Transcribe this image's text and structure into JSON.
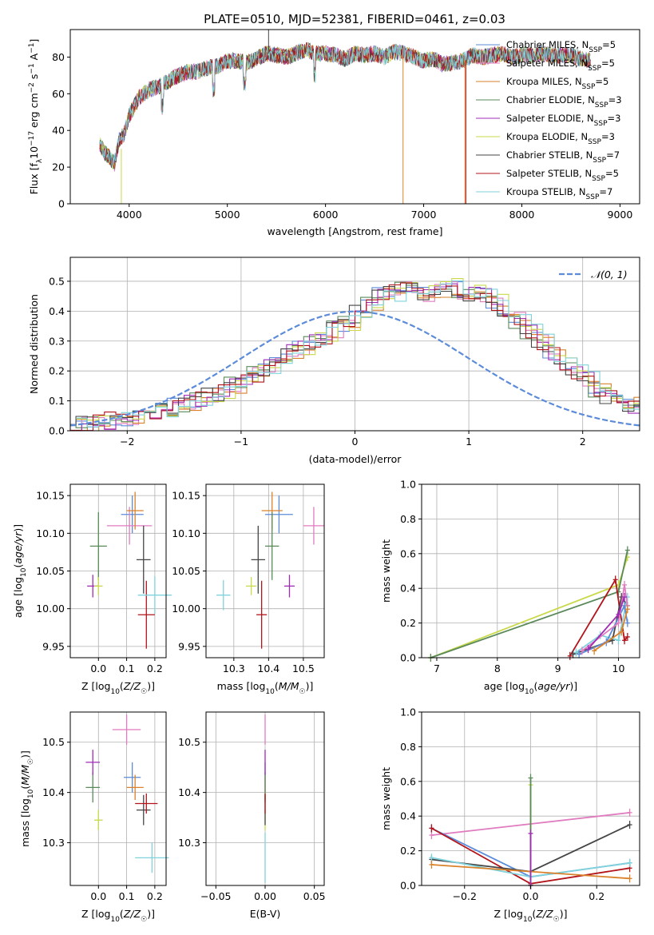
{
  "figure": {
    "title": "PLATE=0510, MJD=52381, FIBERID=0461, z=0.03",
    "colors": {
      "chabrier_miles": "#5b8bd9",
      "salpeter_miles": "#e07bbf",
      "kroupa_miles": "#d9822b",
      "chabrier_elodie": "#5a8a5a",
      "salpeter_elodie": "#a02bb5",
      "kroupa_elodie": "#c9d94a",
      "chabrier_stelib": "#444444",
      "salpeter_stelib": "#b3141a",
      "kroupa_stelib": "#7fd3dc",
      "normal_curve": "#5b8bd9",
      "grid": "#b0b0b0"
    }
  },
  "chart_data": [
    {
      "id": "spectrum",
      "type": "line",
      "title": "PLATE=0510, MJD=52381, FIBERID=0461, z=0.03",
      "xlabel": "wavelength [Angstrom, rest frame]",
      "ylabel": "Flux [f_λ 10^-17 erg cm^-2 s^-1 A^-1]",
      "xlim": [
        3400,
        9200
      ],
      "ylim": [
        0,
        95
      ],
      "xticks": [
        4000,
        5000,
        6000,
        7000,
        8000,
        9000
      ],
      "yticks": [
        0,
        20,
        40,
        60,
        80
      ],
      "grid": false,
      "legend_position": "upper-right",
      "spectrum_envelope": {
        "x": [
          3700,
          3750,
          3800,
          3850,
          3900,
          3950,
          4000,
          4100,
          4200,
          4300,
          4400,
          4500,
          4600,
          4700,
          4800,
          4900,
          5000,
          5100,
          5200,
          5300,
          5400,
          5500,
          5600,
          5700,
          5800,
          5900,
          6000,
          6100,
          6200,
          6300,
          6400,
          6500,
          6600,
          6700,
          6800,
          6900,
          7000,
          7100,
          7200,
          7300,
          7400,
          7500,
          7600,
          7700,
          7800,
          7900,
          8000,
          8100,
          8200,
          8300,
          8400,
          8500,
          8600,
          8700
        ],
        "y": [
          33,
          28,
          25,
          22,
          35,
          38,
          48,
          58,
          62,
          64,
          67,
          70,
          72,
          72,
          74,
          75,
          78,
          78,
          77,
          79,
          82,
          81,
          80,
          82,
          84,
          82,
          82,
          81,
          79,
          82,
          81,
          82,
          80,
          83,
          82,
          80,
          78,
          79,
          76,
          77,
          78,
          81,
          80,
          81,
          82,
          80,
          81,
          81,
          82,
          81,
          81,
          81,
          79,
          78
        ]
      },
      "series": [
        {
          "name": "Chabrier MILES, N_SSP=5",
          "color_key": "chabrier_miles"
        },
        {
          "name": "Salpeter MILES, N_SSP=5",
          "color_key": "salpeter_miles"
        },
        {
          "name": "Kroupa MILES, N_SSP=5",
          "color_key": "kroupa_miles"
        },
        {
          "name": "Chabrier ELODIE, N_SSP=3",
          "color_key": "chabrier_elodie"
        },
        {
          "name": "Salpeter ELODIE, N_SSP=3",
          "color_key": "salpeter_elodie"
        },
        {
          "name": "Kroupa ELODIE, N_SSP=3",
          "color_key": "kroupa_elodie"
        },
        {
          "name": "Chabrier STELIB, N_SSP=7",
          "color_key": "chabrier_stelib"
        },
        {
          "name": "Salpeter STELIB, N_SSP=5",
          "color_key": "salpeter_stelib"
        },
        {
          "name": "Kroupa STELIB, N_SSP=7",
          "color_key": "kroupa_stelib"
        }
      ]
    },
    {
      "id": "residuals",
      "type": "line",
      "xlabel": "(data-model)/error",
      "ylabel": "Normed distribution",
      "xlim": [
        -2.5,
        2.5
      ],
      "ylim": [
        0,
        0.58
      ],
      "xticks": [
        -2,
        -1,
        0,
        1,
        2
      ],
      "yticks": [
        0.0,
        0.1,
        0.2,
        0.3,
        0.4,
        0.5
      ],
      "grid": true,
      "legend_position": "upper-right",
      "legend": [
        "𝒩(0, 1)"
      ],
      "histogram_bin_width": 0.1,
      "histogram_bin_start": -2.5,
      "histogram_base": [
        0.02,
        0.025,
        0.03,
        0.033,
        0.04,
        0.045,
        0.05,
        0.06,
        0.07,
        0.08,
        0.09,
        0.1,
        0.115,
        0.13,
        0.15,
        0.17,
        0.19,
        0.21,
        0.23,
        0.26,
        0.28,
        0.3,
        0.32,
        0.34,
        0.36,
        0.39,
        0.42,
        0.45,
        0.46,
        0.47,
        0.47,
        0.46,
        0.47,
        0.48,
        0.47,
        0.46,
        0.45,
        0.43,
        0.4,
        0.37,
        0.33,
        0.3,
        0.26,
        0.23,
        0.2,
        0.17,
        0.14,
        0.12,
        0.1,
        0.085,
        0.07,
        0.06,
        0.05,
        0.045,
        0.04,
        0.035,
        0.03,
        0.028,
        0.025,
        0.02
      ],
      "histogram_series_keys": [
        "chabrier_miles",
        "salpeter_miles",
        "kroupa_miles",
        "chabrier_elodie",
        "salpeter_elodie",
        "kroupa_elodie",
        "chabrier_stelib",
        "salpeter_stelib",
        "kroupa_stelib"
      ]
    },
    {
      "id": "age_vs_z",
      "type": "scatter",
      "xlabel": "Z [log10(Z/Z☉)]",
      "ylabel": "age [log10(age/yr)]",
      "xlim": [
        -0.1,
        0.24
      ],
      "ylim": [
        9.935,
        10.165
      ],
      "xticks": [
        0.0,
        0.1,
        0.2
      ],
      "yticks": [
        9.95,
        10.0,
        10.05,
        10.1,
        10.15
      ],
      "grid": true,
      "points": [
        {
          "key": "chabrier_miles",
          "x": 0.12,
          "y": 10.125,
          "xerr": 0.04,
          "yerr": 0.025
        },
        {
          "key": "salpeter_miles",
          "x": 0.11,
          "y": 10.11,
          "xerr": 0.08,
          "yerr": 0.025
        },
        {
          "key": "kroupa_miles",
          "x": 0.13,
          "y": 10.13,
          "xerr": 0.03,
          "yerr": 0.025
        },
        {
          "key": "chabrier_elodie",
          "x": 0.0,
          "y": 10.083,
          "xerr": 0.03,
          "yerr": 0.045
        },
        {
          "key": "salpeter_elodie",
          "x": -0.02,
          "y": 10.03,
          "xerr": 0.02,
          "yerr": 0.015
        },
        {
          "key": "kroupa_elodie",
          "x": 0.0,
          "y": 10.03,
          "xerr": 0.015,
          "yerr": 0.012
        },
        {
          "key": "chabrier_stelib",
          "x": 0.16,
          "y": 10.065,
          "xerr": 0.025,
          "yerr": 0.045
        },
        {
          "key": "salpeter_stelib",
          "x": 0.17,
          "y": 9.992,
          "xerr": 0.03,
          "yerr": 0.045
        },
        {
          "key": "kroupa_stelib",
          "x": 0.2,
          "y": 10.018,
          "xerr": 0.06,
          "yerr": 0.025
        }
      ]
    },
    {
      "id": "age_vs_mass",
      "type": "scatter",
      "xlabel": "mass [log10(M/M☉)]",
      "yticks": [
        9.95,
        10.0,
        10.05,
        10.1,
        10.15
      ],
      "xlim": [
        10.22,
        10.56
      ],
      "ylim": [
        9.935,
        10.165
      ],
      "xticks": [
        10.3,
        10.4,
        10.5
      ],
      "grid": true,
      "points": [
        {
          "key": "chabrier_miles",
          "x": 10.43,
          "y": 10.125,
          "xerr": 0.04,
          "yerr": 0.025
        },
        {
          "key": "salpeter_miles",
          "x": 10.53,
          "y": 10.11,
          "xerr": 0.03,
          "yerr": 0.025
        },
        {
          "key": "kroupa_miles",
          "x": 10.41,
          "y": 10.13,
          "xerr": 0.03,
          "yerr": 0.025
        },
        {
          "key": "chabrier_elodie",
          "x": 10.41,
          "y": 10.083,
          "xerr": 0.02,
          "yerr": 0.045
        },
        {
          "key": "salpeter_elodie",
          "x": 10.46,
          "y": 10.03,
          "xerr": 0.015,
          "yerr": 0.015
        },
        {
          "key": "kroupa_elodie",
          "x": 10.35,
          "y": 10.03,
          "xerr": 0.015,
          "yerr": 0.012
        },
        {
          "key": "chabrier_stelib",
          "x": 10.37,
          "y": 10.065,
          "xerr": 0.02,
          "yerr": 0.045
        },
        {
          "key": "salpeter_stelib",
          "x": 10.38,
          "y": 9.992,
          "xerr": 0.015,
          "yerr": 0.045
        },
        {
          "key": "kroupa_stelib",
          "x": 10.27,
          "y": 10.018,
          "xerr": 0.02,
          "yerr": 0.02
        }
      ]
    },
    {
      "id": "mass_weight_vs_age",
      "type": "line",
      "xlabel": "age [log10(age/yr)]",
      "ylabel": "mass weight",
      "xlim": [
        6.75,
        10.35
      ],
      "ylim": [
        0.0,
        1.0
      ],
      "xticks": [
        7,
        8,
        9,
        10
      ],
      "yticks": [
        0.0,
        0.2,
        0.4,
        0.6,
        0.8,
        1.0
      ],
      "grid": true,
      "series": [
        {
          "key": "kroupa_elodie",
          "x": [
            6.9,
            10.0,
            10.15
          ],
          "y": [
            0.0,
            0.42,
            0.58
          ]
        },
        {
          "key": "chabrier_elodie",
          "x": [
            6.9,
            10.0,
            10.15
          ],
          "y": [
            0.0,
            0.38,
            0.62
          ]
        },
        {
          "key": "salpeter_stelib",
          "x": [
            9.2,
            9.95,
            10.1,
            10.15
          ],
          "y": [
            0.01,
            0.45,
            0.1,
            0.12
          ]
        },
        {
          "key": "chabrier_stelib",
          "x": [
            9.25,
            9.9,
            10.05,
            10.15
          ],
          "y": [
            0.02,
            0.1,
            0.35,
            0.3
          ]
        },
        {
          "key": "kroupa_stelib",
          "x": [
            9.3,
            9.7,
            10.0,
            10.15
          ],
          "y": [
            0.03,
            0.13,
            0.1,
            0.35
          ]
        },
        {
          "key": "chabrier_miles",
          "x": [
            9.35,
            9.8,
            10.1,
            10.15
          ],
          "y": [
            0.02,
            0.09,
            0.3,
            0.2
          ]
        },
        {
          "key": "salpeter_miles",
          "x": [
            9.4,
            10.0,
            10.1,
            10.15
          ],
          "y": [
            0.04,
            0.2,
            0.42,
            0.3
          ]
        },
        {
          "key": "salpeter_elodie",
          "x": [
            9.5,
            10.0,
            10.1
          ],
          "y": [
            0.05,
            0.25,
            0.35
          ]
        },
        {
          "key": "kroupa_miles",
          "x": [
            9.6,
            10.05,
            10.15
          ],
          "y": [
            0.04,
            0.15,
            0.28
          ]
        }
      ]
    },
    {
      "id": "mass_vs_z",
      "type": "scatter",
      "xlabel": "Z [log10(Z/Z☉)]",
      "ylabel": "mass [log10(M/M☉)]",
      "xlim": [
        -0.1,
        0.24
      ],
      "ylim": [
        10.215,
        10.56
      ],
      "xticks": [
        0.0,
        0.1,
        0.2
      ],
      "yticks": [
        10.3,
        10.4,
        10.5
      ],
      "grid": true,
      "points": [
        {
          "key": "chabrier_miles",
          "x": 0.12,
          "y": 10.43,
          "xerr": 0.03,
          "yerr": 0.03
        },
        {
          "key": "salpeter_miles",
          "x": 0.1,
          "y": 10.525,
          "xerr": 0.05,
          "yerr": 0.03
        },
        {
          "key": "kroupa_miles",
          "x": 0.13,
          "y": 10.41,
          "xerr": 0.03,
          "yerr": 0.025
        },
        {
          "key": "chabrier_elodie",
          "x": -0.02,
          "y": 10.41,
          "xerr": 0.025,
          "yerr": 0.03
        },
        {
          "key": "salpeter_elodie",
          "x": -0.02,
          "y": 10.46,
          "xerr": 0.025,
          "yerr": 0.025
        },
        {
          "key": "kroupa_elodie",
          "x": 0.0,
          "y": 10.345,
          "xerr": 0.015,
          "yerr": 0.02
        },
        {
          "key": "chabrier_stelib",
          "x": 0.16,
          "y": 10.365,
          "xerr": 0.025,
          "yerr": 0.03
        },
        {
          "key": "salpeter_stelib",
          "x": 0.17,
          "y": 10.378,
          "xerr": 0.04,
          "yerr": 0.02
        },
        {
          "key": "kroupa_stelib",
          "x": 0.19,
          "y": 10.27,
          "xerr": 0.06,
          "yerr": 0.03
        }
      ]
    },
    {
      "id": "mass_vs_ebv",
      "type": "scatter",
      "xlabel": "E(B-V)",
      "xlim": [
        -0.06,
        0.06
      ],
      "ylim": [
        10.215,
        10.56
      ],
      "xticks": [
        -0.05,
        0.0,
        0.05
      ],
      "yticks": [
        10.3,
        10.4,
        10.5
      ],
      "grid": true,
      "points": [
        {
          "key": "chabrier_miles",
          "x": 0.0,
          "y": 10.43,
          "xerr": 0.0,
          "yerr": 0.03
        },
        {
          "key": "salpeter_miles",
          "x": 0.0,
          "y": 10.525,
          "xerr": 0.0,
          "yerr": 0.03
        },
        {
          "key": "kroupa_miles",
          "x": 0.0,
          "y": 10.41,
          "xerr": 0.0,
          "yerr": 0.025
        },
        {
          "key": "chabrier_elodie",
          "x": 0.0,
          "y": 10.41,
          "xerr": 0.0,
          "yerr": 0.03
        },
        {
          "key": "salpeter_elodie",
          "x": 0.0,
          "y": 10.46,
          "xerr": 0.0,
          "yerr": 0.025
        },
        {
          "key": "kroupa_elodie",
          "x": 0.0,
          "y": 10.345,
          "xerr": 0.0,
          "yerr": 0.02
        },
        {
          "key": "chabrier_stelib",
          "x": 0.0,
          "y": 10.365,
          "xerr": 0.0,
          "yerr": 0.03
        },
        {
          "key": "salpeter_stelib",
          "x": 0.0,
          "y": 10.378,
          "xerr": 0.0,
          "yerr": 0.02
        },
        {
          "key": "kroupa_stelib",
          "x": 0.0,
          "y": 10.27,
          "xerr": 0.0,
          "yerr": 0.05
        }
      ]
    },
    {
      "id": "mass_weight_vs_z",
      "type": "line",
      "xlabel": "Z [log10(Z/Z☉)]",
      "ylabel": "mass weight",
      "xlim": [
        -0.33,
        0.33
      ],
      "ylim": [
        0.0,
        1.0
      ],
      "xticks": [
        -0.2,
        0.0,
        0.2
      ],
      "yticks": [
        0.0,
        0.2,
        0.4,
        0.6,
        0.8,
        1.0
      ],
      "grid": true,
      "series": [
        {
          "key": "salpeter_miles",
          "x": [
            -0.3,
            0.3
          ],
          "y": [
            0.29,
            0.42
          ]
        },
        {
          "key": "chabrier_miles",
          "x": [
            -0.3,
            0.0,
            0.3
          ],
          "y": [
            0.33,
            0.05,
            0.13
          ]
        },
        {
          "key": "salpeter_stelib",
          "x": [
            -0.3,
            0.0,
            0.3
          ],
          "y": [
            0.33,
            0.01,
            0.1
          ]
        },
        {
          "key": "chabrier_stelib",
          "x": [
            -0.3,
            0.0,
            0.3
          ],
          "y": [
            0.15,
            0.08,
            0.35
          ]
        },
        {
          "key": "kroupa_stelib",
          "x": [
            -0.3,
            0.0,
            0.3
          ],
          "y": [
            0.16,
            0.05,
            0.13
          ]
        },
        {
          "key": "kroupa_miles",
          "x": [
            -0.3,
            0.0,
            0.3
          ],
          "y": [
            0.12,
            0.08,
            0.04
          ]
        },
        {
          "key": "kroupa_elodie",
          "x": [
            0.0,
            0.0
          ],
          "y": [
            0.0,
            0.58
          ]
        },
        {
          "key": "chabrier_elodie",
          "x": [
            0.0,
            0.0
          ],
          "y": [
            0.0,
            0.62
          ]
        },
        {
          "key": "salpeter_elodie",
          "x": [
            0.0,
            0.0
          ],
          "y": [
            0.0,
            0.3
          ]
        }
      ]
    }
  ]
}
